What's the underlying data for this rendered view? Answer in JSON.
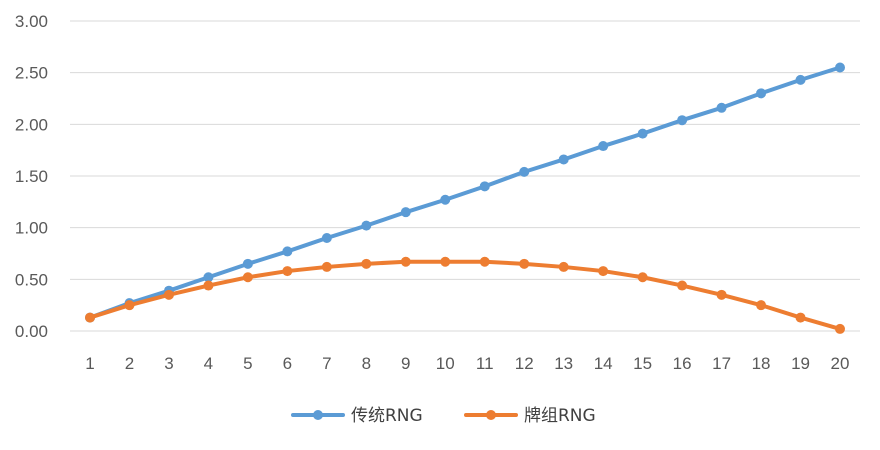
{
  "chart_data": {
    "type": "line",
    "title": "",
    "xlabel": "",
    "ylabel": "",
    "x": [
      1,
      2,
      3,
      4,
      5,
      6,
      7,
      8,
      9,
      10,
      11,
      12,
      13,
      14,
      15,
      16,
      17,
      18,
      19,
      20
    ],
    "x_tick_labels": [
      "1",
      "2",
      "3",
      "4",
      "5",
      "6",
      "7",
      "8",
      "9",
      "10",
      "11",
      "12",
      "13",
      "14",
      "15",
      "16",
      "17",
      "18",
      "19",
      "20"
    ],
    "ylim": [
      0,
      3
    ],
    "y_ticks": [
      0,
      0.5,
      1,
      1.5,
      2,
      2.5,
      3
    ],
    "y_tick_labels": [
      "0.00",
      "0.50",
      "1.00",
      "1.50",
      "2.00",
      "2.50",
      "3.00"
    ],
    "grid": "horizontal",
    "legend_position": "bottom",
    "series": [
      {
        "name": "传统RNG",
        "color": "#5B9BD5",
        "values": [
          0.13,
          0.27,
          0.39,
          0.52,
          0.65,
          0.77,
          0.9,
          1.02,
          1.15,
          1.27,
          1.4,
          1.54,
          1.66,
          1.79,
          1.91,
          2.04,
          2.16,
          2.3,
          2.43,
          2.55
        ]
      },
      {
        "name": "牌组RNG",
        "color": "#ED7D31",
        "values": [
          0.13,
          0.25,
          0.35,
          0.44,
          0.52,
          0.58,
          0.62,
          0.65,
          0.67,
          0.67,
          0.67,
          0.65,
          0.62,
          0.58,
          0.52,
          0.44,
          0.35,
          0.25,
          0.13,
          0.02
        ]
      }
    ],
    "colors": {
      "gridline": "#D9D9D9",
      "axis_line": "#D9D9D9",
      "tick_text": "#595959",
      "legend_text": "#404040"
    }
  }
}
